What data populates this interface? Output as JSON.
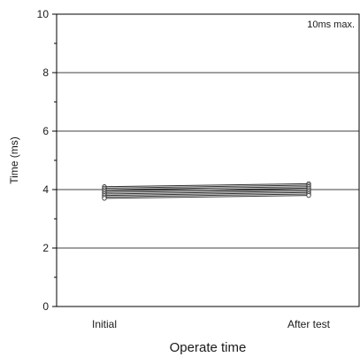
{
  "chart_data": {
    "type": "line",
    "title": "",
    "xlabel": "Operate time",
    "ylabel": "Time (ms)",
    "annotation": "10ms max.",
    "categories": [
      "Initial",
      "After test"
    ],
    "ylim": [
      0,
      10
    ],
    "yticks": [
      0,
      2,
      4,
      6,
      8,
      10
    ],
    "minor_yticks": [
      1,
      3,
      5,
      7,
      9
    ],
    "grid": true,
    "series": [
      {
        "values": [
          4.1,
          4.2
        ]
      },
      {
        "values": [
          4.05,
          4.15
        ]
      },
      {
        "values": [
          4.0,
          4.1
        ]
      },
      {
        "values": [
          3.95,
          4.05
        ]
      },
      {
        "values": [
          3.9,
          4.0
        ]
      },
      {
        "values": [
          3.85,
          3.95
        ]
      },
      {
        "values": [
          3.8,
          3.9
        ]
      },
      {
        "values": [
          3.75,
          3.85
        ]
      },
      {
        "values": [
          3.7,
          3.8
        ]
      }
    ],
    "colors": {
      "line": "#333333",
      "grid": "#000000",
      "marker_fill": "#ffffff"
    }
  }
}
